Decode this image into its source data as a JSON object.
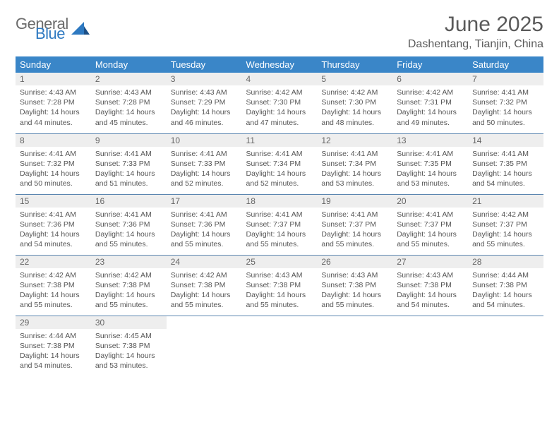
{
  "logo": {
    "text1": "General",
    "text2": "Blue",
    "color1": "#6b6b6b",
    "color2": "#2e79c1"
  },
  "title": "June 2025",
  "location": "Dashentang, Tianjin, China",
  "theme": {
    "header_bg": "#3a86c8",
    "header_fg": "#ffffff",
    "daynum_bg": "#eeeeee",
    "border_color": "#5b86b0",
    "text_color": "#555555"
  },
  "daysOfWeek": [
    "Sunday",
    "Monday",
    "Tuesday",
    "Wednesday",
    "Thursday",
    "Friday",
    "Saturday"
  ],
  "weeks": [
    [
      {
        "n": "1",
        "sr": "4:43 AM",
        "ss": "7:28 PM",
        "dl": "14 hours and 44 minutes."
      },
      {
        "n": "2",
        "sr": "4:43 AM",
        "ss": "7:28 PM",
        "dl": "14 hours and 45 minutes."
      },
      {
        "n": "3",
        "sr": "4:43 AM",
        "ss": "7:29 PM",
        "dl": "14 hours and 46 minutes."
      },
      {
        "n": "4",
        "sr": "4:42 AM",
        "ss": "7:30 PM",
        "dl": "14 hours and 47 minutes."
      },
      {
        "n": "5",
        "sr": "4:42 AM",
        "ss": "7:30 PM",
        "dl": "14 hours and 48 minutes."
      },
      {
        "n": "6",
        "sr": "4:42 AM",
        "ss": "7:31 PM",
        "dl": "14 hours and 49 minutes."
      },
      {
        "n": "7",
        "sr": "4:41 AM",
        "ss": "7:32 PM",
        "dl": "14 hours and 50 minutes."
      }
    ],
    [
      {
        "n": "8",
        "sr": "4:41 AM",
        "ss": "7:32 PM",
        "dl": "14 hours and 50 minutes."
      },
      {
        "n": "9",
        "sr": "4:41 AM",
        "ss": "7:33 PM",
        "dl": "14 hours and 51 minutes."
      },
      {
        "n": "10",
        "sr": "4:41 AM",
        "ss": "7:33 PM",
        "dl": "14 hours and 52 minutes."
      },
      {
        "n": "11",
        "sr": "4:41 AM",
        "ss": "7:34 PM",
        "dl": "14 hours and 52 minutes."
      },
      {
        "n": "12",
        "sr": "4:41 AM",
        "ss": "7:34 PM",
        "dl": "14 hours and 53 minutes."
      },
      {
        "n": "13",
        "sr": "4:41 AM",
        "ss": "7:35 PM",
        "dl": "14 hours and 53 minutes."
      },
      {
        "n": "14",
        "sr": "4:41 AM",
        "ss": "7:35 PM",
        "dl": "14 hours and 54 minutes."
      }
    ],
    [
      {
        "n": "15",
        "sr": "4:41 AM",
        "ss": "7:36 PM",
        "dl": "14 hours and 54 minutes."
      },
      {
        "n": "16",
        "sr": "4:41 AM",
        "ss": "7:36 PM",
        "dl": "14 hours and 55 minutes."
      },
      {
        "n": "17",
        "sr": "4:41 AM",
        "ss": "7:36 PM",
        "dl": "14 hours and 55 minutes."
      },
      {
        "n": "18",
        "sr": "4:41 AM",
        "ss": "7:37 PM",
        "dl": "14 hours and 55 minutes."
      },
      {
        "n": "19",
        "sr": "4:41 AM",
        "ss": "7:37 PM",
        "dl": "14 hours and 55 minutes."
      },
      {
        "n": "20",
        "sr": "4:41 AM",
        "ss": "7:37 PM",
        "dl": "14 hours and 55 minutes."
      },
      {
        "n": "21",
        "sr": "4:42 AM",
        "ss": "7:37 PM",
        "dl": "14 hours and 55 minutes."
      }
    ],
    [
      {
        "n": "22",
        "sr": "4:42 AM",
        "ss": "7:38 PM",
        "dl": "14 hours and 55 minutes."
      },
      {
        "n": "23",
        "sr": "4:42 AM",
        "ss": "7:38 PM",
        "dl": "14 hours and 55 minutes."
      },
      {
        "n": "24",
        "sr": "4:42 AM",
        "ss": "7:38 PM",
        "dl": "14 hours and 55 minutes."
      },
      {
        "n": "25",
        "sr": "4:43 AM",
        "ss": "7:38 PM",
        "dl": "14 hours and 55 minutes."
      },
      {
        "n": "26",
        "sr": "4:43 AM",
        "ss": "7:38 PM",
        "dl": "14 hours and 55 minutes."
      },
      {
        "n": "27",
        "sr": "4:43 AM",
        "ss": "7:38 PM",
        "dl": "14 hours and 54 minutes."
      },
      {
        "n": "28",
        "sr": "4:44 AM",
        "ss": "7:38 PM",
        "dl": "14 hours and 54 minutes."
      }
    ],
    [
      {
        "n": "29",
        "sr": "4:44 AM",
        "ss": "7:38 PM",
        "dl": "14 hours and 54 minutes."
      },
      {
        "n": "30",
        "sr": "4:45 AM",
        "ss": "7:38 PM",
        "dl": "14 hours and 53 minutes."
      },
      null,
      null,
      null,
      null,
      null
    ]
  ],
  "labels": {
    "sunrise": "Sunrise:",
    "sunset": "Sunset:",
    "daylight": "Daylight:"
  }
}
